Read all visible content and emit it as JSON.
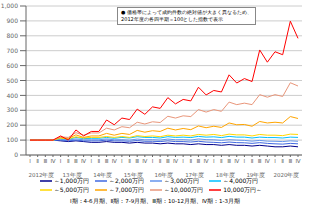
{
  "chart_data": {
    "type": "line",
    "categories": [
      "Ⅰ",
      "Ⅱ",
      "Ⅲ",
      "Ⅳ",
      "Ⅰ",
      "Ⅱ",
      "Ⅲ",
      "Ⅳ",
      "Ⅰ",
      "Ⅱ",
      "Ⅲ",
      "Ⅳ",
      "Ⅰ",
      "Ⅱ",
      "Ⅲ",
      "Ⅳ",
      "Ⅰ",
      "Ⅱ",
      "Ⅲ",
      "Ⅳ",
      "Ⅰ",
      "Ⅱ",
      "Ⅲ",
      "Ⅳ",
      "Ⅰ",
      "Ⅱ",
      "Ⅲ",
      "Ⅳ",
      "Ⅰ",
      "Ⅱ",
      "Ⅲ",
      "Ⅳ",
      "Ⅰ",
      "Ⅱ",
      "Ⅲ",
      "Ⅳ"
    ],
    "group_labels": [
      "2012年度",
      "13年度",
      "14年度",
      "15年度",
      "16年度",
      "17年度",
      "18年度",
      "19年度",
      "2020年度"
    ],
    "annotations": [
      "● 価格帯によって成約件数の絶対値が大きく異なるため、\n2012年度の各四半期＝100とした指数で表示",
      "Ⅰ期：4-6月期、Ⅱ期：7-9月期、Ⅲ期：10-12月期、Ⅳ期：1-3月期"
    ],
    "ylim": [
      0,
      1000
    ],
    "yticks": [
      0,
      100,
      200,
      300,
      400,
      500,
      600,
      700,
      800,
      900,
      {
        "value": 1000,
        "label": "1,000"
      }
    ],
    "grid": true,
    "legend": "bottom",
    "series": [
      {
        "name": "～1,000万円",
        "color": "#00008B",
        "values": [
          100,
          100,
          100,
          100,
          95,
          90,
          95,
          90,
          85,
          85,
          90,
          85,
          85,
          80,
          85,
          80,
          80,
          75,
          80,
          75,
          75,
          70,
          75,
          70,
          70,
          65,
          70,
          65,
          65,
          60,
          65,
          60,
          55,
          55,
          60,
          55
        ]
      },
      {
        "name": "～2,000万円",
        "color": "#4169E1",
        "values": [
          100,
          100,
          100,
          100,
          100,
          95,
          100,
          95,
          95,
          95,
          100,
          95,
          95,
          92,
          97,
          92,
          92,
          90,
          95,
          90,
          90,
          87,
          92,
          87,
          85,
          82,
          87,
          83,
          82,
          78,
          83,
          78,
          75,
          73,
          78,
          75
        ]
      },
      {
        "name": "～3,000万円",
        "color": "#6495ED",
        "values": [
          100,
          100,
          100,
          100,
          105,
          100,
          108,
          102,
          102,
          102,
          108,
          102,
          103,
          100,
          107,
          102,
          103,
          100,
          107,
          102,
          103,
          100,
          108,
          103,
          102,
          98,
          103,
          100,
          98,
          93,
          98,
          93,
          92,
          90,
          95,
          92
        ]
      },
      {
        "name": "～4,000万円",
        "color": "#00BFFF",
        "values": [
          100,
          100,
          100,
          100,
          110,
          105,
          118,
          110,
          112,
          112,
          118,
          112,
          118,
          114,
          123,
          118,
          118,
          114,
          123,
          118,
          120,
          117,
          125,
          120,
          122,
          117,
          125,
          120,
          120,
          114,
          120,
          117,
          117,
          114,
          120,
          118
        ]
      },
      {
        "name": "～5,000万円",
        "color": "#FFD700",
        "values": [
          100,
          100,
          100,
          100,
          112,
          108,
          122,
          114,
          118,
          118,
          124,
          118,
          124,
          118,
          130,
          124,
          128,
          123,
          133,
          128,
          133,
          128,
          138,
          133,
          138,
          130,
          140,
          135,
          135,
          128,
          138,
          133,
          133,
          130,
          140,
          138
        ]
      },
      {
        "name": "～7,000万円",
        "color": "#FFA500",
        "values": [
          100,
          100,
          100,
          100,
          118,
          112,
          135,
          118,
          128,
          128,
          145,
          133,
          145,
          138,
          165,
          153,
          163,
          158,
          180,
          168,
          178,
          170,
          195,
          183,
          193,
          185,
          215,
          203,
          205,
          193,
          225,
          215,
          220,
          215,
          258,
          245
        ]
      },
      {
        "name": "～10,000万円",
        "color": "#E9967A",
        "values": [
          100,
          100,
          100,
          100,
          122,
          118,
          150,
          133,
          148,
          148,
          180,
          168,
          190,
          183,
          220,
          208,
          223,
          218,
          260,
          248,
          263,
          258,
          305,
          288,
          305,
          293,
          355,
          338,
          348,
          338,
          405,
          388,
          405,
          393,
          485,
          463
        ]
      },
      {
        "name": "10,000万円～",
        "color": "#FF0000",
        "values": [
          100,
          100,
          100,
          100,
          128,
          100,
          168,
          128,
          158,
          158,
          235,
          203,
          248,
          238,
          308,
          273,
          323,
          313,
          385,
          343,
          373,
          363,
          455,
          403,
          433,
          423,
          538,
          483,
          513,
          493,
          705,
          623,
          693,
          673,
          898,
          783
        ]
      }
    ]
  }
}
